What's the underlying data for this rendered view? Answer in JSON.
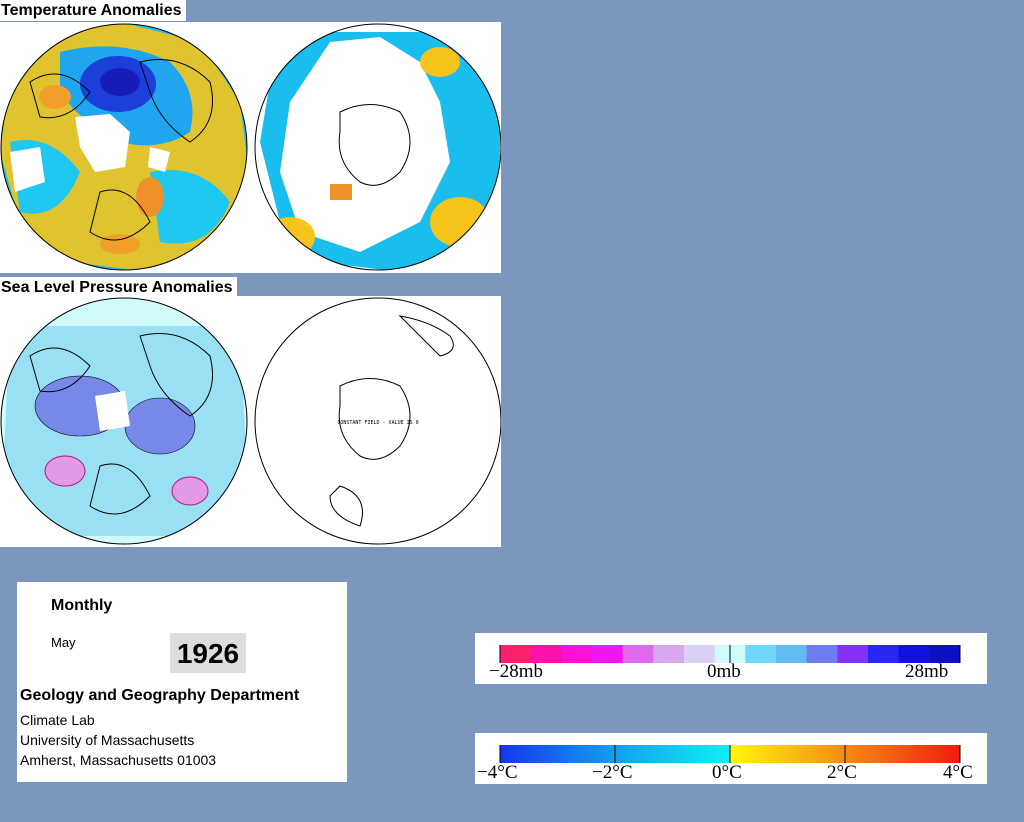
{
  "temperature": {
    "title": "Temperature Anomalies"
  },
  "pressure": {
    "title": "Sea Level Pressure Anomalies",
    "constant_field_label": "CONSTANT FIELD - VALUE IS 0"
  },
  "info": {
    "period": "Monthly",
    "month": "May",
    "year": "1926",
    "department": "Geology and Geography Department",
    "lab": "Climate Lab",
    "university": "University of Massachusetts",
    "address": "Amherst, Massachusetts 01003"
  },
  "pressure_scale": {
    "labels": [
      "−28mb",
      "0mb",
      "28mb"
    ],
    "colors": [
      "#ff1f6f",
      "#ff10a8",
      "#ff10d6",
      "#f018f0",
      "#de68ee",
      "#d9a7ee",
      "#dcd0f5",
      "#cffcfa",
      "#6ed6f8",
      "#62bbf3",
      "#6f7cf0",
      "#8432f6",
      "#2a26f6",
      "#1010e2",
      "#0d10c0"
    ]
  },
  "temperature_scale": {
    "labels": [
      "−4°C",
      "−2°C",
      "0°C",
      "2°C",
      "4°C"
    ],
    "colors": [
      "#1535f0",
      "#13a0ee",
      "#11eef4",
      "#fef610",
      "#f68c10",
      "#f01c10"
    ]
  }
}
